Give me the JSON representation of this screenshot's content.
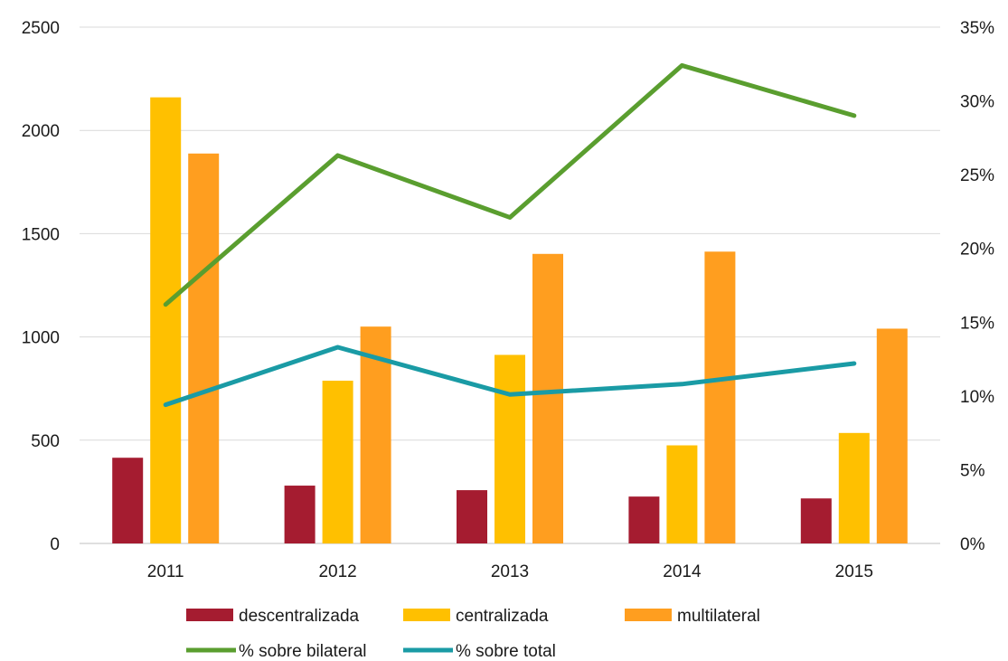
{
  "chart_data": {
    "type": "bar",
    "title": "",
    "categories": [
      "2011",
      "2012",
      "2013",
      "2014",
      "2015"
    ],
    "series": [
      {
        "name": "descentralizada",
        "values": [
          415,
          280,
          258,
          227,
          218
        ],
        "color": "#a51c30",
        "axis": "left",
        "kind": "bar"
      },
      {
        "name": "centralizada",
        "values": [
          2160,
          788,
          913,
          475,
          535
        ],
        "color": "#ffc000",
        "axis": "left",
        "kind": "bar"
      },
      {
        "name": "multilateral",
        "values": [
          1888,
          1050,
          1402,
          1413,
          1040
        ],
        "color": "#ff9e1f",
        "axis": "left",
        "kind": "bar"
      },
      {
        "name": "% sobre bilateral",
        "values": [
          16.2,
          26.3,
          22.1,
          32.4,
          29.0
        ],
        "color": "#5a9e2f",
        "axis": "right",
        "kind": "line"
      },
      {
        "name": "% sobre total",
        "values": [
          9.4,
          13.3,
          10.1,
          10.8,
          12.2
        ],
        "color": "#1a9ba5",
        "axis": "right",
        "kind": "line"
      }
    ],
    "y_left": {
      "ylim": [
        0,
        2500
      ],
      "ticks": [
        "0",
        "500",
        "1000",
        "1500",
        "2000",
        "2500"
      ]
    },
    "y_right": {
      "ylim": [
        0,
        35
      ],
      "ticks": [
        "0%",
        "5%",
        "10%",
        "15%",
        "20%",
        "25%",
        "30%",
        "35%"
      ]
    },
    "grid": true,
    "legend_position": "bottom"
  }
}
